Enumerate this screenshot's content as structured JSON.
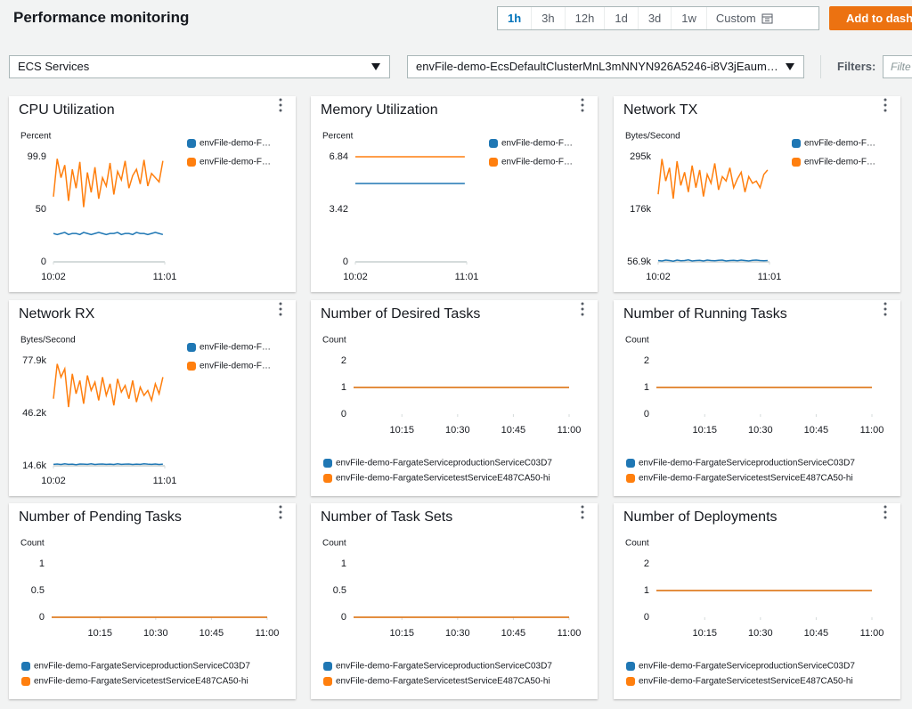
{
  "header": {
    "title": "Performance monitoring",
    "time_ranges": [
      "1h",
      "3h",
      "12h",
      "1d",
      "3d",
      "1w"
    ],
    "selected_range": 0,
    "custom": "Custom",
    "add_button": "Add to dash"
  },
  "filters": {
    "service": "ECS Services",
    "cluster": "envFile-demo-EcsDefaultClusterMnL3mNNYN926A5246-i8V3jEaum…",
    "label": "Filters:",
    "placeholder": "Filte"
  },
  "widgets": [
    {
      "type": "line",
      "title": "CPU Utilization",
      "unit": "Percent",
      "legend": "right",
      "ylim": [
        0,
        99.9
      ],
      "yticks": [
        0,
        50,
        99.9
      ],
      "grid": true,
      "xlim": [
        2,
        61
      ],
      "xticks": [
        {
          "value": 2,
          "label": "10:02"
        },
        {
          "value": 61,
          "label": "11:01"
        }
      ],
      "x": [
        2,
        4,
        6,
        8,
        10,
        12,
        14,
        16,
        18,
        20,
        22,
        24,
        26,
        28,
        30,
        32,
        34,
        36,
        38,
        40,
        42,
        44,
        46,
        48,
        50,
        52,
        54,
        56,
        58,
        60
      ],
      "series": [
        {
          "name": "envFile-demo-F…",
          "color": "#1f77b4",
          "values": [
            27,
            26,
            27,
            28,
            26,
            27,
            27,
            26,
            28,
            27,
            26,
            27,
            28,
            27,
            26,
            27,
            27,
            28,
            26,
            27,
            27,
            26,
            28,
            27,
            27,
            26,
            27,
            28,
            27,
            26
          ]
        },
        {
          "name": "envFile-demo-F…",
          "color": "#ff7f0e",
          "values": [
            62,
            98,
            80,
            92,
            58,
            88,
            70,
            95,
            52,
            85,
            66,
            90,
            60,
            80,
            72,
            94,
            64,
            86,
            78,
            96,
            70,
            82,
            88,
            74,
            97,
            72,
            84,
            80,
            76,
            96
          ]
        }
      ]
    },
    {
      "type": "line",
      "title": "Memory Utilization",
      "unit": "Percent",
      "legend": "right",
      "ylim": [
        0,
        6.84
      ],
      "yticks": [
        0,
        3.42,
        6.84
      ],
      "grid": true,
      "xlim": [
        2,
        61
      ],
      "xticks": [
        {
          "value": 2,
          "label": "10:02"
        },
        {
          "value": 61,
          "label": "11:01"
        }
      ],
      "x": [
        2,
        60
      ],
      "series": [
        {
          "name": "envFile-demo-F…",
          "color": "#1f77b4",
          "values": [
            5.1,
            5.1
          ]
        },
        {
          "name": "envFile-demo-F…",
          "color": "#ff7f0e",
          "values": [
            6.84,
            6.84
          ]
        }
      ]
    },
    {
      "type": "line",
      "title": "Network TX",
      "unit": "Bytes/Second",
      "legend": "right",
      "ylim": [
        56900,
        295000
      ],
      "yticks": [
        {
          "value": 56900,
          "label": "56.9k"
        },
        {
          "value": 176000,
          "label": "176k"
        },
        {
          "value": 295000,
          "label": "295k"
        }
      ],
      "grid": true,
      "xlim": [
        2,
        61
      ],
      "xticks": [
        {
          "value": 2,
          "label": "10:02"
        },
        {
          "value": 61,
          "label": "11:01"
        }
      ],
      "x": [
        2,
        4,
        6,
        8,
        10,
        12,
        14,
        16,
        18,
        20,
        22,
        24,
        26,
        28,
        30,
        32,
        34,
        36,
        38,
        40,
        42,
        44,
        46,
        48,
        50,
        52,
        54,
        56,
        58,
        60
      ],
      "series": [
        {
          "name": "envFile-demo-F…",
          "color": "#1f77b4",
          "values": [
            60000,
            59000,
            61000,
            60000,
            58500,
            61000,
            59500,
            60000,
            61500,
            59000,
            60000,
            60500,
            59000,
            61000,
            60000,
            59500,
            60500,
            61000,
            59000,
            60000,
            60500,
            59500,
            61000,
            60000,
            59000,
            60500,
            61000,
            60000,
            59500,
            60000
          ]
        },
        {
          "name": "envFile-demo-F…",
          "color": "#ff7f0e",
          "values": [
            210000,
            290000,
            240000,
            270000,
            200000,
            285000,
            230000,
            260000,
            215000,
            275000,
            225000,
            265000,
            205000,
            255000,
            235000,
            280000,
            220000,
            250000,
            240000,
            270000,
            225000,
            245000,
            260000,
            215000,
            250000,
            235000,
            240000,
            225000,
            255000,
            265000
          ]
        }
      ]
    },
    {
      "type": "line",
      "title": "Network RX",
      "unit": "Bytes/Second",
      "legend": "right",
      "ylim": [
        14600,
        77900
      ],
      "yticks": [
        {
          "value": 14600,
          "label": "14.6k"
        },
        {
          "value": 46200,
          "label": "46.2k"
        },
        {
          "value": 77900,
          "label": "77.9k"
        }
      ],
      "grid": true,
      "xlim": [
        2,
        61
      ],
      "xticks": [
        {
          "value": 2,
          "label": "10:02"
        },
        {
          "value": 61,
          "label": "11:01"
        }
      ],
      "x": [
        2,
        4,
        6,
        8,
        10,
        12,
        14,
        16,
        18,
        20,
        22,
        24,
        26,
        28,
        30,
        32,
        34,
        36,
        38,
        40,
        42,
        44,
        46,
        48,
        50,
        52,
        54,
        56,
        58,
        60
      ],
      "series": [
        {
          "name": "envFile-demo-F…",
          "color": "#1f77b4",
          "values": [
            15500,
            15700,
            15400,
            15800,
            15500,
            15600,
            15300,
            15700,
            15600,
            15500,
            15800,
            15400,
            15600,
            15700,
            15500,
            15600,
            15400,
            15800,
            15500,
            15600,
            15700,
            15400,
            15600,
            15500,
            15800,
            15600,
            15500,
            15700,
            15400,
            15600
          ]
        },
        {
          "name": "envFile-demo-F…",
          "color": "#ff7f0e",
          "values": [
            55000,
            76000,
            68000,
            73000,
            50000,
            70000,
            58000,
            66000,
            52000,
            69000,
            60000,
            65000,
            54000,
            68000,
            57000,
            64000,
            51000,
            67000,
            59000,
            63000,
            55000,
            66000,
            53000,
            62000,
            57000,
            60000,
            54000,
            64000,
            58000,
            68000
          ]
        }
      ]
    },
    {
      "type": "line",
      "title": "Number of Desired Tasks",
      "unit": "Count",
      "legend": "bottom",
      "ylim": [
        0,
        2
      ],
      "yticks": [
        0,
        1,
        2
      ],
      "grid": false,
      "xlim": [
        2,
        60
      ],
      "xticks": [
        {
          "value": 15,
          "label": "10:15"
        },
        {
          "value": 30,
          "label": "10:30"
        },
        {
          "value": 45,
          "label": "10:45"
        },
        {
          "value": 60,
          "label": "11:00"
        }
      ],
      "x": [
        2,
        60
      ],
      "series": [
        {
          "name": "envFile-demo-FargateServiceproductionServiceC03D7",
          "color": "#1f77b4",
          "values": [
            1,
            1
          ]
        },
        {
          "name": "envFile-demo-FargateServicetestServiceE487CA50-hi",
          "color": "#ff7f0e",
          "values": [
            1,
            1
          ]
        }
      ]
    },
    {
      "type": "line",
      "title": "Number of Running Tasks",
      "unit": "Count",
      "legend": "bottom",
      "ylim": [
        0,
        2
      ],
      "yticks": [
        0,
        1,
        2
      ],
      "grid": false,
      "xlim": [
        2,
        60
      ],
      "xticks": [
        {
          "value": 15,
          "label": "10:15"
        },
        {
          "value": 30,
          "label": "10:30"
        },
        {
          "value": 45,
          "label": "10:45"
        },
        {
          "value": 60,
          "label": "11:00"
        }
      ],
      "x": [
        2,
        60
      ],
      "series": [
        {
          "name": "envFile-demo-FargateServiceproductionServiceC03D7",
          "color": "#1f77b4",
          "values": [
            1,
            1
          ]
        },
        {
          "name": "envFile-demo-FargateServicetestServiceE487CA50-hi",
          "color": "#ff7f0e",
          "values": [
            1,
            1
          ]
        }
      ]
    },
    {
      "type": "line",
      "title": "Number of Pending Tasks",
      "unit": "Count",
      "legend": "bottom",
      "ylim": [
        0,
        1
      ],
      "yticks": [
        0,
        0.5,
        1
      ],
      "grid": false,
      "xlim": [
        2,
        60
      ],
      "xticks": [
        {
          "value": 15,
          "label": "10:15"
        },
        {
          "value": 30,
          "label": "10:30"
        },
        {
          "value": 45,
          "label": "10:45"
        },
        {
          "value": 60,
          "label": "11:00"
        }
      ],
      "x": [
        2,
        60
      ],
      "series": [
        {
          "name": "envFile-demo-FargateServiceproductionServiceC03D7",
          "color": "#1f77b4",
          "values": [
            0,
            0
          ]
        },
        {
          "name": "envFile-demo-FargateServicetestServiceE487CA50-hi",
          "color": "#ff7f0e",
          "values": [
            0,
            0
          ]
        }
      ]
    },
    {
      "type": "line",
      "title": "Number of Task Sets",
      "unit": "Count",
      "legend": "bottom",
      "ylim": [
        0,
        1
      ],
      "yticks": [
        0,
        0.5,
        1
      ],
      "grid": false,
      "xlim": [
        2,
        60
      ],
      "xticks": [
        {
          "value": 15,
          "label": "10:15"
        },
        {
          "value": 30,
          "label": "10:30"
        },
        {
          "value": 45,
          "label": "10:45"
        },
        {
          "value": 60,
          "label": "11:00"
        }
      ],
      "x": [
        2,
        60
      ],
      "series": [
        {
          "name": "envFile-demo-FargateServiceproductionServiceC03D7",
          "color": "#1f77b4",
          "values": [
            0,
            0
          ]
        },
        {
          "name": "envFile-demo-FargateServicetestServiceE487CA50-hi",
          "color": "#ff7f0e",
          "values": [
            0,
            0
          ]
        }
      ]
    },
    {
      "type": "line",
      "title": "Number of Deployments",
      "unit": "Count",
      "legend": "bottom",
      "ylim": [
        0,
        2
      ],
      "yticks": [
        0,
        1,
        2
      ],
      "grid": false,
      "xlim": [
        2,
        60
      ],
      "xticks": [
        {
          "value": 15,
          "label": "10:15"
        },
        {
          "value": 30,
          "label": "10:30"
        },
        {
          "value": 45,
          "label": "10:45"
        },
        {
          "value": 60,
          "label": "11:00"
        }
      ],
      "x": [
        2,
        60
      ],
      "series": [
        {
          "name": "envFile-demo-FargateServiceproductionServiceC03D7",
          "color": "#1f77b4",
          "values": [
            1,
            1
          ]
        },
        {
          "name": "envFile-demo-FargateServicetestServiceE487CA50-hi",
          "color": "#ff7f0e",
          "values": [
            1,
            1
          ]
        }
      ]
    }
  ]
}
